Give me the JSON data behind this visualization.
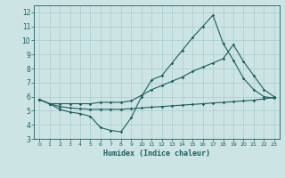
{
  "xlabel": "Humidex (Indice chaleur)",
  "bg_color": "#cde4e4",
  "grid_color": "#aacccc",
  "line_color": "#1a5f5f",
  "xlim": [
    -0.5,
    23.5
  ],
  "ylim": [
    3,
    12.5
  ],
  "xticks": [
    0,
    1,
    2,
    3,
    4,
    5,
    6,
    7,
    8,
    9,
    10,
    11,
    12,
    13,
    14,
    15,
    16,
    17,
    18,
    19,
    20,
    21,
    22,
    23
  ],
  "yticks": [
    3,
    4,
    5,
    6,
    7,
    8,
    9,
    10,
    11,
    12
  ],
  "line1_x": [
    0,
    1,
    2,
    3,
    4,
    5,
    6,
    7,
    8,
    9,
    10,
    11,
    12,
    13,
    14,
    15,
    16,
    17,
    18,
    19,
    20,
    21,
    22,
    23
  ],
  "line1_y": [
    5.8,
    5.5,
    5.1,
    4.9,
    4.8,
    4.6,
    3.8,
    3.6,
    3.5,
    4.5,
    6.0,
    7.2,
    7.5,
    8.4,
    9.3,
    10.2,
    11.0,
    11.8,
    9.8,
    8.6,
    7.3,
    6.5,
    6.0,
    5.9
  ],
  "line2_x": [
    0,
    1,
    2,
    3,
    4,
    5,
    6,
    7,
    8,
    9,
    10,
    11,
    12,
    13,
    14,
    15,
    16,
    17,
    18,
    19,
    20,
    21,
    22,
    23
  ],
  "line2_y": [
    5.8,
    5.5,
    5.5,
    5.5,
    5.5,
    5.5,
    5.6,
    5.6,
    5.6,
    5.7,
    6.1,
    6.5,
    6.8,
    7.1,
    7.4,
    7.8,
    8.1,
    8.4,
    8.7,
    9.7,
    8.5,
    7.5,
    6.5,
    6.0
  ],
  "line3_x": [
    0,
    1,
    2,
    3,
    4,
    5,
    6,
    7,
    8,
    9,
    10,
    11,
    12,
    13,
    14,
    15,
    16,
    17,
    18,
    19,
    20,
    21,
    22,
    23
  ],
  "line3_y": [
    5.8,
    5.5,
    5.3,
    5.2,
    5.15,
    5.1,
    5.1,
    5.1,
    5.1,
    5.15,
    5.2,
    5.25,
    5.3,
    5.35,
    5.4,
    5.45,
    5.5,
    5.55,
    5.6,
    5.65,
    5.7,
    5.75,
    5.85,
    5.95
  ]
}
